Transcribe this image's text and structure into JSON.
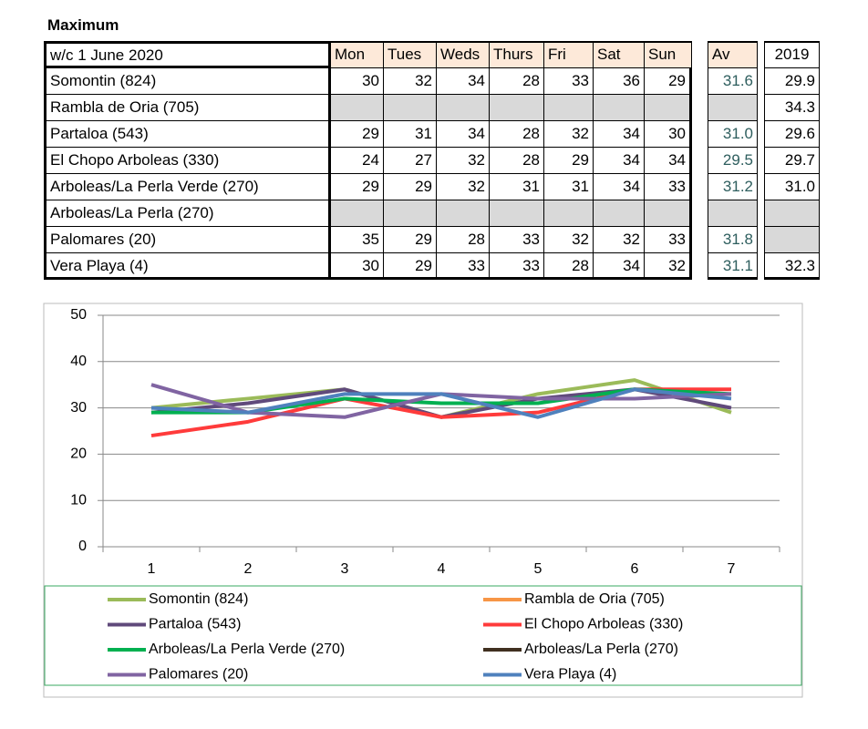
{
  "title": "Maximum",
  "table": {
    "header": [
      "w/c  1 June 2020",
      "Mon",
      "Tues",
      "Weds",
      "Thurs",
      "Fri",
      "Sat",
      "Sun",
      "Av",
      "2019"
    ],
    "rows": [
      [
        "Somontin (824)",
        "30",
        "32",
        "34",
        "28",
        "33",
        "36",
        "29",
        "31.6",
        "29.9"
      ],
      [
        "Rambla de Oria (705)",
        null,
        null,
        null,
        null,
        null,
        null,
        null,
        null,
        "34.3"
      ],
      [
        "Partaloa (543)",
        "29",
        "31",
        "34",
        "28",
        "32",
        "34",
        "30",
        "31.0",
        "29.6"
      ],
      [
        "El Chopo  Arboleas (330)",
        "24",
        "27",
        "32",
        "28",
        "29",
        "34",
        "34",
        "29.5",
        "29.7"
      ],
      [
        "Arboleas/La Perla Verde (270)",
        "29",
        "29",
        "32",
        "31",
        "31",
        "34",
        "33",
        "31.2",
        "31.0"
      ],
      [
        "Arboleas/La Perla (270)",
        null,
        null,
        null,
        null,
        null,
        null,
        null,
        null,
        null
      ],
      [
        "Palomares (20)",
        "35",
        "29",
        "28",
        "33",
        "32",
        "32",
        "33",
        "31.8",
        null
      ],
      [
        "Vera Playa (4)",
        "30",
        "29",
        "33",
        "33",
        "28",
        "34",
        "32",
        "31.1",
        "32.3"
      ]
    ]
  },
  "chart_data": {
    "type": "line",
    "categories": [
      1,
      2,
      3,
      4,
      5,
      6,
      7
    ],
    "ylim": [
      0,
      50
    ],
    "yticks": [
      0,
      10,
      20,
      30,
      40,
      50
    ],
    "grid": true,
    "series": [
      {
        "name": "Somontin (824)",
        "color": "#9bbb59",
        "values": [
          30,
          32,
          34,
          28,
          33,
          36,
          29
        ]
      },
      {
        "name": "Rambla de Oria (705)",
        "color": "#f79646",
        "values": [
          null,
          null,
          null,
          null,
          null,
          null,
          null
        ]
      },
      {
        "name": "Partaloa (543)",
        "color": "#604a7b",
        "values": [
          29,
          31,
          34,
          28,
          32,
          34,
          30
        ]
      },
      {
        "name": "El Chopo  Arboleas (330)",
        "color": "#ff3b3b",
        "values": [
          24,
          27,
          32,
          28,
          29,
          34,
          34
        ]
      },
      {
        "name": "Arboleas/La Perla Verde (270)",
        "color": "#00b050",
        "values": [
          29,
          29,
          32,
          31,
          31,
          34,
          33
        ]
      },
      {
        "name": "Arboleas/La Perla (270)",
        "color": "#403020",
        "values": [
          null,
          null,
          null,
          null,
          null,
          null,
          null
        ]
      },
      {
        "name": "Palomares (20)",
        "color": "#8064a2",
        "values": [
          35,
          29,
          28,
          33,
          32,
          32,
          33
        ]
      },
      {
        "name": "Vera Playa (4)",
        "color": "#4f81bd",
        "values": [
          30,
          29,
          33,
          33,
          28,
          34,
          32
        ]
      }
    ]
  }
}
